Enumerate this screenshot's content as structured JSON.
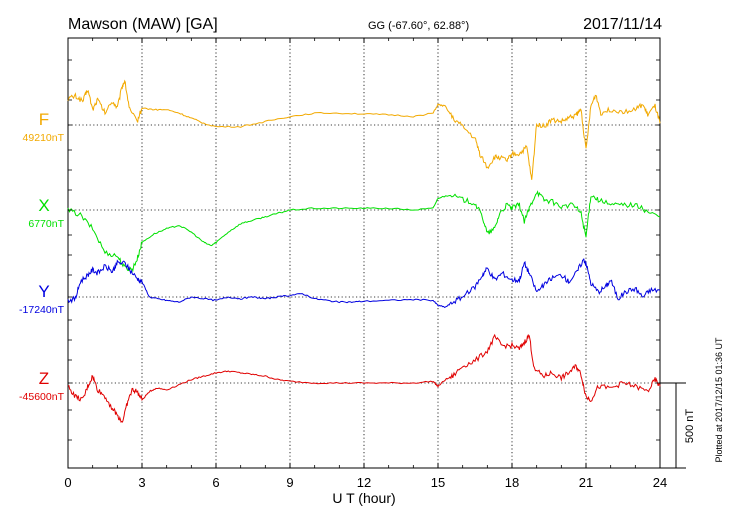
{
  "header": {
    "station": "Mawson (MAW)  [GA]",
    "coords": "GG (-67.60°,  62.88°)",
    "date": "2017/11/14"
  },
  "footer": {
    "plotted": "Plotted at 2017/12/15 01:36 UT"
  },
  "colors": {
    "F": "#f2a900",
    "X": "#00e000",
    "Y": "#0000e0",
    "Z": "#e00000"
  },
  "chart_data": {
    "type": "line",
    "xlabel": "U T (hour)",
    "xlim": [
      0,
      24
    ],
    "xticks": [
      0,
      3,
      6,
      9,
      12,
      15,
      18,
      21,
      24
    ],
    "scale_bar": {
      "value": 500,
      "label": "500 nT"
    },
    "grid": true,
    "series": [
      {
        "name": "F",
        "baseline_label": "49210nT",
        "baseline": 49210,
        "color": "#f2a900",
        "points": [
          [
            0,
            49365
          ],
          [
            0.3,
            49380
          ],
          [
            0.6,
            49350
          ],
          [
            0.8,
            49420
          ],
          [
            1.0,
            49300
          ],
          [
            1.2,
            49360
          ],
          [
            1.5,
            49280
          ],
          [
            1.8,
            49350
          ],
          [
            2.0,
            49310
          ],
          [
            2.2,
            49440
          ],
          [
            2.3,
            49470
          ],
          [
            2.5,
            49300
          ],
          [
            2.8,
            49230
          ],
          [
            3.0,
            49310
          ],
          [
            3.5,
            49300
          ],
          [
            4.0,
            49300
          ],
          [
            4.5,
            49280
          ],
          [
            5.0,
            49250
          ],
          [
            5.5,
            49220
          ],
          [
            6.0,
            49200
          ],
          [
            7.0,
            49200
          ],
          [
            8.0,
            49230
          ],
          [
            9.0,
            49260
          ],
          [
            10.0,
            49280
          ],
          [
            11.0,
            49280
          ],
          [
            12.0,
            49275
          ],
          [
            13.0,
            49270
          ],
          [
            14.0,
            49260
          ],
          [
            14.8,
            49280
          ],
          [
            15.0,
            49330
          ],
          [
            15.3,
            49320
          ],
          [
            15.6,
            49250
          ],
          [
            16.0,
            49200
          ],
          [
            16.5,
            49130
          ],
          [
            16.7,
            49040
          ],
          [
            17.0,
            48960
          ],
          [
            17.3,
            49020
          ],
          [
            17.5,
            49020
          ],
          [
            17.8,
            49000
          ],
          [
            18.0,
            49040
          ],
          [
            18.3,
            49040
          ],
          [
            18.6,
            49080
          ],
          [
            18.8,
            48880
          ],
          [
            19.0,
            49220
          ],
          [
            19.3,
            49200
          ],
          [
            19.6,
            49240
          ],
          [
            20.0,
            49230
          ],
          [
            20.3,
            49250
          ],
          [
            20.6,
            49270
          ],
          [
            20.8,
            49300
          ],
          [
            21.0,
            49060
          ],
          [
            21.2,
            49320
          ],
          [
            21.4,
            49390
          ],
          [
            21.6,
            49280
          ],
          [
            22.0,
            49300
          ],
          [
            22.5,
            49290
          ],
          [
            23.0,
            49300
          ],
          [
            23.3,
            49330
          ],
          [
            23.5,
            49270
          ],
          [
            23.8,
            49320
          ],
          [
            24,
            49220
          ]
        ]
      },
      {
        "name": "X",
        "baseline_label": "6770nT",
        "baseline": 6770,
        "color": "#00e000",
        "points": [
          [
            0,
            6770
          ],
          [
            0.5,
            6740
          ],
          [
            1.0,
            6660
          ],
          [
            1.5,
            6520
          ],
          [
            2.0,
            6500
          ],
          [
            2.3,
            6430
          ],
          [
            2.6,
            6420
          ],
          [
            2.8,
            6480
          ],
          [
            3.0,
            6580
          ],
          [
            3.5,
            6630
          ],
          [
            4.0,
            6660
          ],
          [
            4.5,
            6680
          ],
          [
            5.0,
            6640
          ],
          [
            5.5,
            6580
          ],
          [
            5.8,
            6560
          ],
          [
            6.0,
            6580
          ],
          [
            6.5,
            6640
          ],
          [
            7.0,
            6690
          ],
          [
            7.5,
            6710
          ],
          [
            8.0,
            6730
          ],
          [
            8.5,
            6750
          ],
          [
            9.0,
            6770
          ],
          [
            10.0,
            6780
          ],
          [
            11.0,
            6780
          ],
          [
            12.0,
            6780
          ],
          [
            13.0,
            6780
          ],
          [
            14.0,
            6770
          ],
          [
            14.8,
            6780
          ],
          [
            15.0,
            6840
          ],
          [
            15.5,
            6860
          ],
          [
            16.0,
            6830
          ],
          [
            16.5,
            6810
          ],
          [
            16.8,
            6730
          ],
          [
            17.0,
            6630
          ],
          [
            17.3,
            6660
          ],
          [
            17.5,
            6750
          ],
          [
            17.8,
            6800
          ],
          [
            18.0,
            6780
          ],
          [
            18.3,
            6800
          ],
          [
            18.5,
            6700
          ],
          [
            18.7,
            6780
          ],
          [
            19.0,
            6880
          ],
          [
            19.3,
            6830
          ],
          [
            19.6,
            6820
          ],
          [
            20.0,
            6790
          ],
          [
            20.5,
            6800
          ],
          [
            20.8,
            6750
          ],
          [
            21.0,
            6610
          ],
          [
            21.2,
            6860
          ],
          [
            21.5,
            6830
          ],
          [
            22.0,
            6800
          ],
          [
            22.5,
            6800
          ],
          [
            23.0,
            6800
          ],
          [
            23.5,
            6760
          ],
          [
            24,
            6730
          ]
        ]
      },
      {
        "name": "Y",
        "baseline_label": "-17240nT",
        "baseline": -17240,
        "color": "#0000e0",
        "points": [
          [
            0,
            -17260
          ],
          [
            0.3,
            -17250
          ],
          [
            0.5,
            -17150
          ],
          [
            0.8,
            -17110
          ],
          [
            1.0,
            -17080
          ],
          [
            1.2,
            -17100
          ],
          [
            1.5,
            -17060
          ],
          [
            1.8,
            -17090
          ],
          [
            2.0,
            -17040
          ],
          [
            2.3,
            -17040
          ],
          [
            2.5,
            -17080
          ],
          [
            2.8,
            -17130
          ],
          [
            3.0,
            -17150
          ],
          [
            3.3,
            -17240
          ],
          [
            3.6,
            -17250
          ],
          [
            4.0,
            -17260
          ],
          [
            4.5,
            -17270
          ],
          [
            5.0,
            -17240
          ],
          [
            5.5,
            -17250
          ],
          [
            6.0,
            -17260
          ],
          [
            6.5,
            -17240
          ],
          [
            7.0,
            -17250
          ],
          [
            7.5,
            -17240
          ],
          [
            8.0,
            -17250
          ],
          [
            8.5,
            -17240
          ],
          [
            9.0,
            -17230
          ],
          [
            9.5,
            -17220
          ],
          [
            10.0,
            -17250
          ],
          [
            10.5,
            -17260
          ],
          [
            11.0,
            -17270
          ],
          [
            11.5,
            -17270
          ],
          [
            12.0,
            -17265
          ],
          [
            13.0,
            -17260
          ],
          [
            14.0,
            -17255
          ],
          [
            14.8,
            -17260
          ],
          [
            15.0,
            -17290
          ],
          [
            15.3,
            -17300
          ],
          [
            15.6,
            -17270
          ],
          [
            16.0,
            -17240
          ],
          [
            16.5,
            -17180
          ],
          [
            16.8,
            -17110
          ],
          [
            17.0,
            -17070
          ],
          [
            17.3,
            -17140
          ],
          [
            17.6,
            -17100
          ],
          [
            18.0,
            -17140
          ],
          [
            18.3,
            -17140
          ],
          [
            18.5,
            -17040
          ],
          [
            18.7,
            -17100
          ],
          [
            19.0,
            -17210
          ],
          [
            19.3,
            -17170
          ],
          [
            19.6,
            -17130
          ],
          [
            20.0,
            -17110
          ],
          [
            20.3,
            -17150
          ],
          [
            20.6,
            -17100
          ],
          [
            20.9,
            -17020
          ],
          [
            21.0,
            -17040
          ],
          [
            21.2,
            -17160
          ],
          [
            21.5,
            -17210
          ],
          [
            21.8,
            -17180
          ],
          [
            22.0,
            -17140
          ],
          [
            22.3,
            -17250
          ],
          [
            22.6,
            -17210
          ],
          [
            23.0,
            -17190
          ],
          [
            23.3,
            -17240
          ],
          [
            23.6,
            -17200
          ],
          [
            24,
            -17200
          ]
        ]
      },
      {
        "name": "Z",
        "baseline_label": "-45600nT",
        "baseline": -45600,
        "color": "#e00000",
        "points": [
          [
            0,
            -45620
          ],
          [
            0.3,
            -45680
          ],
          [
            0.6,
            -45700
          ],
          [
            0.8,
            -45620
          ],
          [
            1.0,
            -45560
          ],
          [
            1.2,
            -45640
          ],
          [
            1.5,
            -45680
          ],
          [
            1.8,
            -45750
          ],
          [
            2.0,
            -45790
          ],
          [
            2.2,
            -45830
          ],
          [
            2.4,
            -45720
          ],
          [
            2.6,
            -45640
          ],
          [
            2.8,
            -45650
          ],
          [
            3.0,
            -45700
          ],
          [
            3.3,
            -45650
          ],
          [
            3.6,
            -45630
          ],
          [
            4.0,
            -45640
          ],
          [
            4.5,
            -45610
          ],
          [
            5.0,
            -45580
          ],
          [
            5.5,
            -45560
          ],
          [
            6.0,
            -45540
          ],
          [
            6.5,
            -45530
          ],
          [
            7.0,
            -45540
          ],
          [
            7.5,
            -45550
          ],
          [
            8.0,
            -45560
          ],
          [
            8.5,
            -45580
          ],
          [
            9.0,
            -45590
          ],
          [
            10.0,
            -45600
          ],
          [
            11.0,
            -45600
          ],
          [
            12.0,
            -45600
          ],
          [
            13.0,
            -45600
          ],
          [
            14.0,
            -45600
          ],
          [
            14.8,
            -45590
          ],
          [
            15.0,
            -45620
          ],
          [
            15.3,
            -45580
          ],
          [
            15.6,
            -45560
          ],
          [
            16.0,
            -45500
          ],
          [
            16.5,
            -45470
          ],
          [
            17.0,
            -45410
          ],
          [
            17.3,
            -45330
          ],
          [
            17.6,
            -45380
          ],
          [
            18.0,
            -45380
          ],
          [
            18.3,
            -45400
          ],
          [
            18.5,
            -45360
          ],
          [
            18.7,
            -45320
          ],
          [
            18.9,
            -45520
          ],
          [
            19.3,
            -45560
          ],
          [
            19.6,
            -45540
          ],
          [
            20.0,
            -45570
          ],
          [
            20.3,
            -45540
          ],
          [
            20.6,
            -45500
          ],
          [
            20.8,
            -45550
          ],
          [
            21.0,
            -45680
          ],
          [
            21.2,
            -45700
          ],
          [
            21.5,
            -45620
          ],
          [
            22.0,
            -45630
          ],
          [
            22.5,
            -45600
          ],
          [
            23.0,
            -45620
          ],
          [
            23.5,
            -45650
          ],
          [
            23.8,
            -45580
          ],
          [
            24,
            -45620
          ]
        ]
      }
    ]
  }
}
